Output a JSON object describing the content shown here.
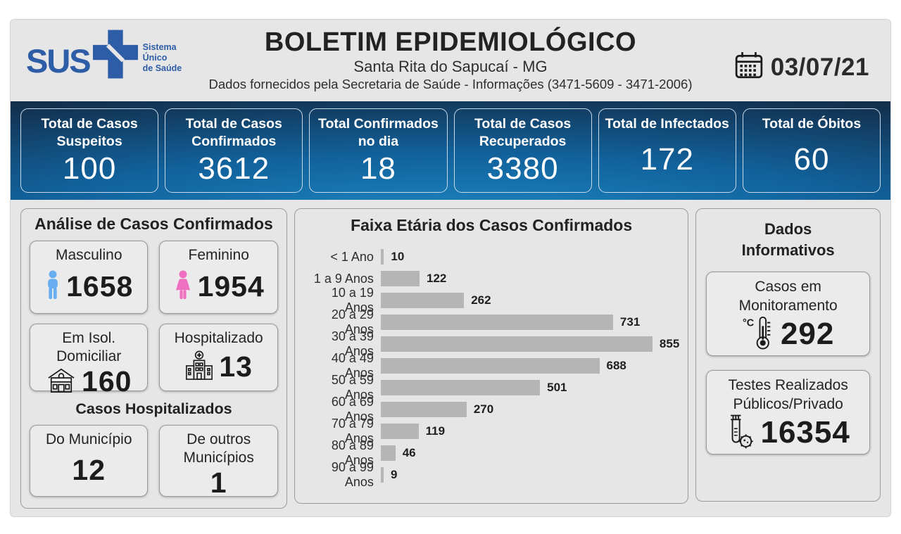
{
  "header": {
    "logo": {
      "text": "SUS",
      "tagline": [
        "Sistema",
        "Único",
        "de Saúde"
      ]
    },
    "title": "BOLETIM EPIDEMIOLÓGICO",
    "subtitle": "Santa Rita do Sapucaí - MG",
    "info": "Dados fornecidos pela Secretaria de Saúde - Informações (3471-5609 - 3471-2006)",
    "date": "03/07/21"
  },
  "summary_cards": [
    {
      "label": "Total de Casos Suspeitos",
      "value": "100"
    },
    {
      "label": "Total de Casos Confirmados",
      "value": "3612"
    },
    {
      "label": "Total Confirmados no dia",
      "value": "18"
    },
    {
      "label": "Total de Casos Recuperados",
      "value": "3380"
    },
    {
      "label": "Total de Infectados",
      "value": "172"
    },
    {
      "label": "Total de Óbitos",
      "value": "60"
    }
  ],
  "analysis": {
    "title": "Análise de Casos Confirmados",
    "cards": [
      {
        "label": "Masculino",
        "value": "1658",
        "icon": "male-icon"
      },
      {
        "label": "Feminino",
        "value": "1954",
        "icon": "female-icon"
      },
      {
        "label": "Em Isol. Domiciliar",
        "value": "160",
        "icon": "house-icon"
      },
      {
        "label": "Hospitalizado",
        "value": "13",
        "icon": "hospital-icon"
      }
    ],
    "hospitalized": {
      "title": "Casos Hospitalizados",
      "cards": [
        {
          "label": "Do Município",
          "value": "12"
        },
        {
          "label": "De outros Municípios",
          "value": "1"
        }
      ]
    }
  },
  "chart_data": {
    "type": "bar",
    "orientation": "horizontal",
    "title": "Faixa Etária dos Casos Confirmados",
    "categories": [
      "< 1 Ano",
      "1 a 9 Anos",
      "10 a 19 Anos",
      "20 a 29 Anos",
      "30 a 39 Anos",
      "40 a 49 Anos",
      "50 a 59 Anos",
      "60 a 69 Anos",
      "70 a 79 Anos",
      "80 a 89 Anos",
      "90 a 99 Anos"
    ],
    "values": [
      10,
      122,
      262,
      731,
      855,
      688,
      501,
      270,
      119,
      46,
      9
    ],
    "xlim": [
      0,
      855
    ],
    "data_labels": true,
    "grid": false,
    "bar_color": "#b5b5b5"
  },
  "info_panel": {
    "title": "Dados Informativos",
    "cards": [
      {
        "label": "Casos em Monitoramento",
        "value": "292",
        "icon": "thermometer-icon"
      },
      {
        "label": "Testes Realizados Públicos/Privado",
        "value": "16354",
        "icon": "testtube-icon"
      }
    ]
  },
  "colors": {
    "brand_blue": "#2d5da7",
    "band_navy": "#132e4a",
    "band_blue_glow": "#1e86c2",
    "card_border_light": "#c8daea",
    "panel_bg": "#e6e6e6",
    "bar_gray": "#b5b5b5",
    "male_blue": "#68aef0",
    "female_pink": "#ef6fc1",
    "text_dark": "#262626"
  }
}
